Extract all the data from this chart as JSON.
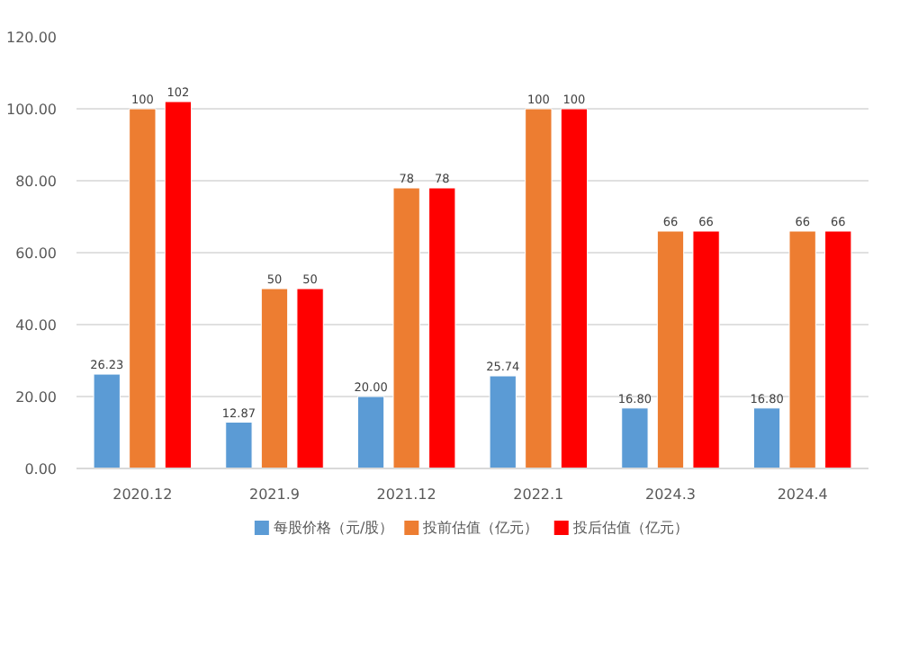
{
  "chart_data": {
    "type": "bar",
    "categories": [
      "2020.12",
      "2021.9",
      "2021.12",
      "2022.1",
      "2024.3",
      "2024.4"
    ],
    "series": [
      {
        "name": "每股价格（元/股）",
        "color": "#5b9bd5",
        "values": [
          26.23,
          12.87,
          20.0,
          25.74,
          16.8,
          16.8
        ],
        "value_labels": [
          "26.23",
          "12.87",
          "20.00",
          "25.74",
          "16.80",
          "16.80"
        ]
      },
      {
        "name": "投前估值（亿元）",
        "color": "#ed7d31",
        "values": [
          100,
          50,
          78,
          100,
          66,
          66
        ],
        "value_labels": [
          "100",
          "50",
          "78",
          "100",
          "66",
          "66"
        ]
      },
      {
        "name": "投后估值（亿元）",
        "color": "#ff0000",
        "values": [
          102,
          50,
          78,
          100,
          66,
          66
        ],
        "value_labels": [
          "102",
          "50",
          "78",
          "100",
          "66",
          "66"
        ]
      }
    ],
    "ylim": [
      0,
      120
    ],
    "yticks": [
      {
        "value": 0,
        "label": "0.00"
      },
      {
        "value": 20,
        "label": "20.00"
      },
      {
        "value": 40,
        "label": "40.00"
      },
      {
        "value": 60,
        "label": "60.00"
      },
      {
        "value": 80,
        "label": "80.00"
      },
      {
        "value": 100,
        "label": "100.00"
      },
      {
        "value": 120,
        "label": "120.00"
      }
    ],
    "grid": "y",
    "legend": "bottom"
  }
}
